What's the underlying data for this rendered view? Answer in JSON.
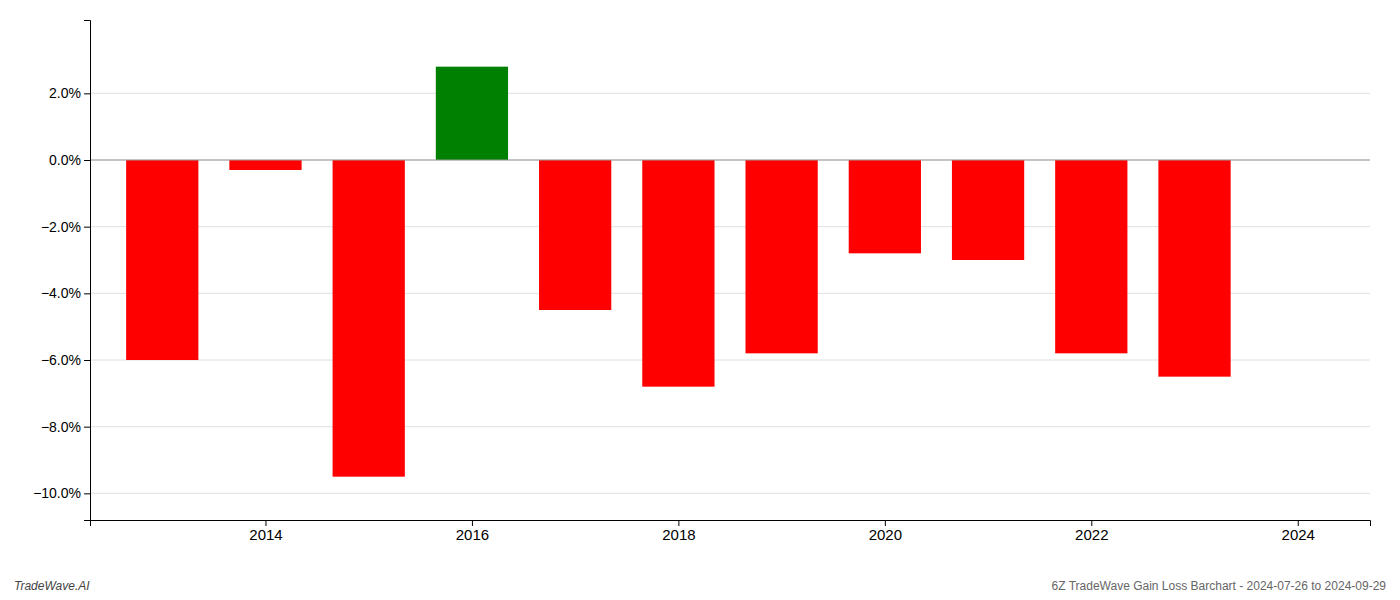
{
  "chart_data": {
    "type": "bar",
    "x": [
      2013,
      2014,
      2015,
      2016,
      2017,
      2018,
      2019,
      2020,
      2021,
      2022,
      2023
    ],
    "values": [
      -0.06,
      -0.003,
      -0.095,
      0.028,
      -0.045,
      -0.068,
      -0.058,
      -0.028,
      -0.03,
      -0.058,
      -0.065
    ],
    "colors": [
      "#ff0000",
      "#ff0000",
      "#ff0000",
      "#008000",
      "#ff0000",
      "#ff0000",
      "#ff0000",
      "#ff0000",
      "#ff0000",
      "#ff0000",
      "#ff0000"
    ],
    "xlim": [
      2012.3,
      2024.7
    ],
    "xticks": [
      2014,
      2016,
      2018,
      2020,
      2022,
      2024
    ],
    "ylim": [
      -0.108,
      0.042
    ],
    "yticks": [
      {
        "value": -0.1,
        "label": "−10.0%"
      },
      {
        "value": -0.08,
        "label": "−8.0%"
      },
      {
        "value": -0.06,
        "label": "−6.0%"
      },
      {
        "value": -0.04,
        "label": "−4.0%"
      },
      {
        "value": -0.02,
        "label": "−2.0%"
      },
      {
        "value": 0.0,
        "label": "0.0%"
      },
      {
        "value": 0.02,
        "label": "2.0%"
      }
    ],
    "grid": true,
    "annotations": [
      "TradeWave.AI",
      "6Z TradeWave Gain Loss Barchart - 2024-07-26 to 2024-09-29"
    ]
  }
}
